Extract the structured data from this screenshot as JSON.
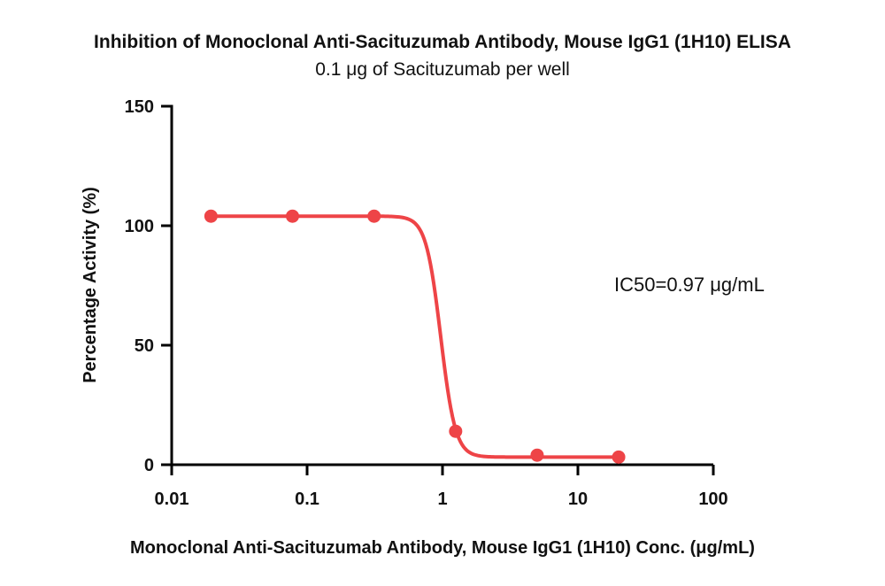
{
  "chart_data": {
    "type": "scatter",
    "title": "Inhibition of Monoclonal Anti-Sacituzumab Antibody, Mouse IgG1 (1H10) ELISA",
    "subtitle": "0.1 μg of Sacituzumab per well",
    "xlabel": "Monoclonal Anti-Sacituzumab Antibody, Mouse IgG1 (1H10) Conc. (μg/mL)",
    "ylabel": "Percentage Activity (%)",
    "xscale": "log",
    "xlim": [
      0.01,
      100
    ],
    "ylim": [
      0,
      150
    ],
    "x_ticks": [
      0.01,
      0.1,
      1,
      10,
      100
    ],
    "x_tick_labels": [
      "0.01",
      "0.1",
      "1",
      "10",
      "100"
    ],
    "y_ticks": [
      0,
      50,
      100,
      150
    ],
    "y_tick_labels": [
      "0",
      "50",
      "100",
      "150"
    ],
    "grid": false,
    "legend": "none",
    "color": "#EE4447",
    "annotation": "IC50=0.97 μg/mL",
    "points": [
      {
        "x": 0.0195,
        "y": 104
      },
      {
        "x": 0.078,
        "y": 104
      },
      {
        "x": 0.3125,
        "y": 104
      },
      {
        "x": 1.25,
        "y": 14
      },
      {
        "x": 5,
        "y": 4
      },
      {
        "x": 20,
        "y": 3.2
      }
    ],
    "fit_curve": {
      "top": 104,
      "bottom": 3.2,
      "ic50": 0.97,
      "hill": 8,
      "x_range": [
        0.0195,
        20
      ]
    }
  }
}
